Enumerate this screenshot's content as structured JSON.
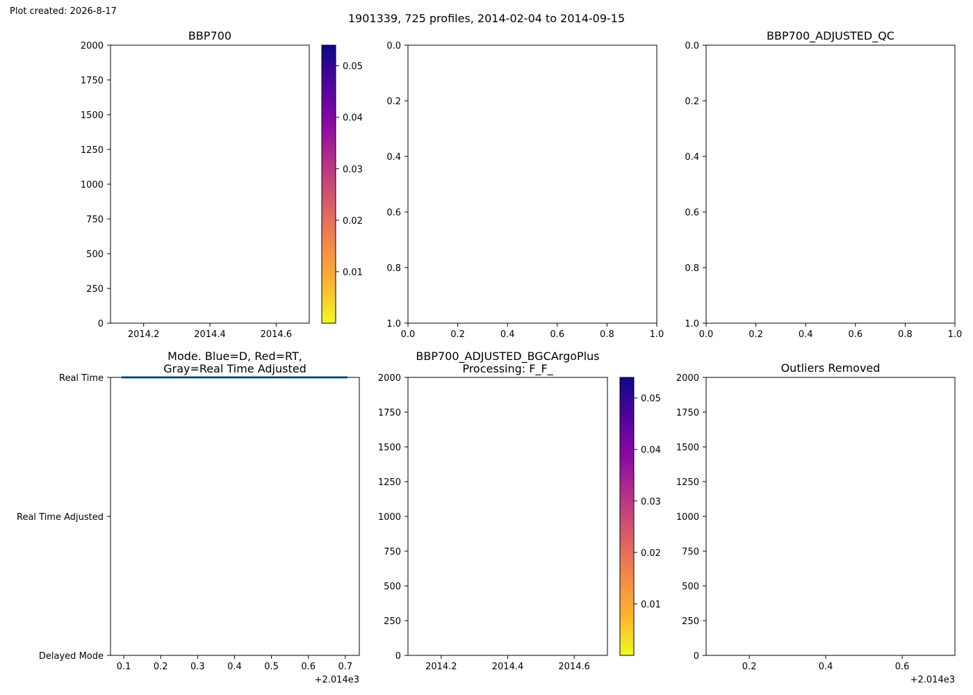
{
  "figure": {
    "created_note": "Plot created: 2026-8-17",
    "suptitle": "1901339, 725 profiles, 2014-02-04 to 2014-09-15"
  },
  "colormap": {
    "name": "plasma_r",
    "stops": [
      "#f0f921",
      "#fdb42f",
      "#f48849",
      "#db5c68",
      "#b83289",
      "#8b0aa5",
      "#5302a3",
      "#0d0887"
    ]
  },
  "chart_data": [
    {
      "id": "bbp700",
      "type": "heatmap",
      "title": "BBP700",
      "xlim": [
        2014.1,
        2014.7
      ],
      "ylim": [
        2000,
        0
      ],
      "xticks": [
        2014.2,
        2014.4,
        2014.6
      ],
      "xtick_labels": [
        "2014.2",
        "2014.4",
        "2014.6"
      ],
      "yticks": [
        0,
        250,
        500,
        750,
        1000,
        1250,
        1500,
        1750,
        2000
      ],
      "ytick_labels": [
        "0",
        "250",
        "500",
        "750",
        "1000",
        "1250",
        "1500",
        "1750",
        "2000"
      ],
      "values": [],
      "colorbar": {
        "range": [
          0.0,
          0.054
        ],
        "ticks": [
          0.01,
          0.02,
          0.03,
          0.04,
          0.05
        ],
        "tick_labels": [
          "0.01",
          "0.02",
          "0.03",
          "0.04",
          "0.05"
        ]
      }
    },
    {
      "id": "empty-axes",
      "type": "scatter",
      "title": "",
      "xlim": [
        0,
        1
      ],
      "ylim": [
        0,
        1
      ],
      "xticks": [
        0,
        0.2,
        0.4,
        0.6,
        0.8,
        1.0
      ],
      "xtick_labels": [
        "0.0",
        "0.2",
        "0.4",
        "0.6",
        "0.8",
        "1.0"
      ],
      "yticks": [
        0,
        0.2,
        0.4,
        0.6,
        0.8,
        1.0
      ],
      "ytick_labels": [
        "0.0",
        "0.2",
        "0.4",
        "0.6",
        "0.8",
        "1.0"
      ],
      "values": []
    },
    {
      "id": "bbp700-adjusted-qc",
      "type": "scatter",
      "title": "BBP700_ADJUSTED_QC",
      "xlim": [
        0,
        1
      ],
      "ylim": [
        0,
        1
      ],
      "xticks": [
        0,
        0.2,
        0.4,
        0.6,
        0.8,
        1.0
      ],
      "xtick_labels": [
        "0.0",
        "0.2",
        "0.4",
        "0.6",
        "0.8",
        "1.0"
      ],
      "yticks": [
        0,
        0.2,
        0.4,
        0.6,
        0.8,
        1.0
      ],
      "ytick_labels": [
        "0.0",
        "0.2",
        "0.4",
        "0.6",
        "0.8",
        "1.0"
      ],
      "values": []
    },
    {
      "id": "mode",
      "type": "line",
      "title_lines": [
        "Mode. Blue=D, Red=RT,",
        "Gray=Real Time Adjusted"
      ],
      "xlim": [
        0.064,
        0.738
      ],
      "ylim": [
        0,
        2
      ],
      "xticks": [
        0.1,
        0.2,
        0.3,
        0.4,
        0.5,
        0.6,
        0.7
      ],
      "xtick_labels": [
        "0.1",
        "0.2",
        "0.3",
        "0.4",
        "0.5",
        "0.6",
        "0.7"
      ],
      "x_offset_label": "+2.014e3",
      "yticks": [
        0,
        1,
        2
      ],
      "ytick_labels": [
        "Real Time",
        "Real Time Adjusted",
        "Delayed Mode"
      ],
      "series": [
        {
          "color": "#1f77b4",
          "x": [
            0.094,
            0.706
          ],
          "y": [
            0,
            0
          ]
        }
      ]
    },
    {
      "id": "bbp700-adjusted-bgcargoplus",
      "type": "heatmap",
      "title_lines": [
        "BBP700_ADJUSTED_BGCArgoPlus",
        "Processing: F_F_"
      ],
      "xlim": [
        2014.1,
        2014.7
      ],
      "ylim": [
        2000,
        0
      ],
      "xticks": [
        2014.2,
        2014.4,
        2014.6
      ],
      "xtick_labels": [
        "2014.2",
        "2014.4",
        "2014.6"
      ],
      "yticks": [
        0,
        250,
        500,
        750,
        1000,
        1250,
        1500,
        1750,
        2000
      ],
      "ytick_labels": [
        "0",
        "250",
        "500",
        "750",
        "1000",
        "1250",
        "1500",
        "1750",
        "2000"
      ],
      "values": [],
      "colorbar": {
        "range": [
          0.0,
          0.054
        ],
        "ticks": [
          0.01,
          0.02,
          0.03,
          0.04,
          0.05
        ],
        "tick_labels": [
          "0.01",
          "0.02",
          "0.03",
          "0.04",
          "0.05"
        ]
      }
    },
    {
      "id": "outliers-removed",
      "type": "scatter",
      "title": "Outliers Removed",
      "xlim": [
        0.087,
        0.738
      ],
      "ylim": [
        2000,
        0
      ],
      "xticks": [
        0.2,
        0.4,
        0.6
      ],
      "xtick_labels": [
        "0.2",
        "0.4",
        "0.6"
      ],
      "x_offset_label": "+2.014e3",
      "yticks": [
        0,
        250,
        500,
        750,
        1000,
        1250,
        1500,
        1750,
        2000
      ],
      "ytick_labels": [
        "0",
        "250",
        "500",
        "750",
        "1000",
        "1250",
        "1500",
        "1750",
        "2000"
      ],
      "values": []
    }
  ]
}
